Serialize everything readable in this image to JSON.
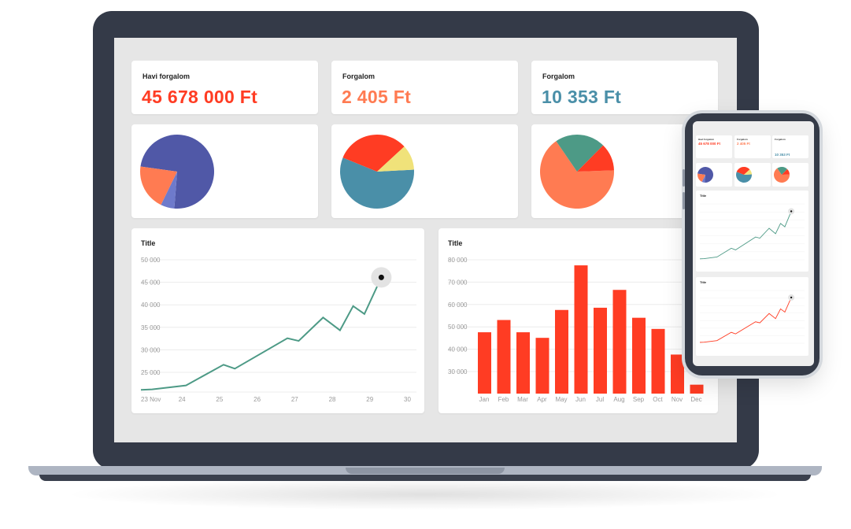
{
  "colors": {
    "red": "#ff3c23",
    "orange": "#ff7b52",
    "teal": "#4a8fa8",
    "green": "#4d9a86",
    "indigo": "#5058a7",
    "periwinkle": "#6e7acb",
    "yellow": "#f0e27a"
  },
  "stats": [
    {
      "label": "Havi forgalom",
      "value": "45 678 000 Ft",
      "color": "#ff3c23"
    },
    {
      "label": "Forgalom",
      "value": "2 405 Ft",
      "color": "#ff7b52"
    },
    {
      "label": "Forgalom",
      "value": "10 353 Ft",
      "color": "#4a8fa8"
    }
  ],
  "pies": [
    {
      "slices": [
        {
          "value": 74,
          "color": "#5058a7"
        },
        {
          "value": 6,
          "color": "#6e7acb"
        },
        {
          "value": 20,
          "color": "#ff7b52"
        }
      ]
    },
    {
      "slices": [
        {
          "value": 57,
          "color": "#4a8fa8"
        },
        {
          "value": 32,
          "color": "#ff3c23"
        },
        {
          "value": 11,
          "color": "#f0e27a"
        }
      ]
    },
    {
      "slices": [
        {
          "value": 66,
          "color": "#ff7b52"
        },
        {
          "value": 22,
          "color": "#4d9a86"
        },
        {
          "value": 12,
          "color": "#ff3c23"
        }
      ]
    }
  ],
  "line_chart": {
    "title": "Title",
    "color": "#4d9a86",
    "chart_data": {
      "type": "line",
      "title": "Title",
      "x_ticks": [
        "23 Nov",
        "24",
        "25",
        "26",
        "27",
        "28",
        "29",
        "30"
      ],
      "y_ticks": [
        "50 000",
        "45 000",
        "40 000",
        "35 000",
        "30 000",
        "25 000"
      ],
      "ylim": [
        20000,
        50000
      ],
      "x": [
        0,
        0.3,
        1.2,
        2.2,
        2.5,
        3.9,
        4.2,
        4.85,
        5.3,
        5.65,
        5.95,
        6.4
      ],
      "y": [
        20500,
        20600,
        21500,
        26200,
        25300,
        32200,
        31600,
        36900,
        34000,
        39500,
        37700,
        46000
      ],
      "highlight_index": 11
    }
  },
  "bar_chart": {
    "title": "Title",
    "color": "#ff3c23",
    "chart_data": {
      "type": "bar",
      "title": "Title",
      "categories": [
        "Jan",
        "Feb",
        "Mar",
        "Apr",
        "May",
        "Jun",
        "Jul",
        "Aug",
        "Sep",
        "Oct",
        "Nov",
        "Dec"
      ],
      "values": [
        47500,
        53000,
        47500,
        45000,
        57500,
        77500,
        58500,
        66500,
        54000,
        49000,
        37500,
        24000
      ],
      "y_ticks": [
        "80 000",
        "70 000",
        "60 000",
        "50 000",
        "40 000",
        "30 000"
      ],
      "ylim": [
        20000,
        80000
      ]
    }
  },
  "mobile": {
    "stats": [
      {
        "label": "Havi forgalom",
        "value": "45 678 000 Ft",
        "color": "#ff3c23"
      },
      {
        "label": "Forgalom",
        "value": "2 405 Ft",
        "color": "#ff7b52"
      },
      {
        "label": "Forgalom",
        "value": "10 353 Ft",
        "color": "#4a8fa8"
      }
    ],
    "chart1_title": "Title",
    "chart2_title": "Title"
  }
}
